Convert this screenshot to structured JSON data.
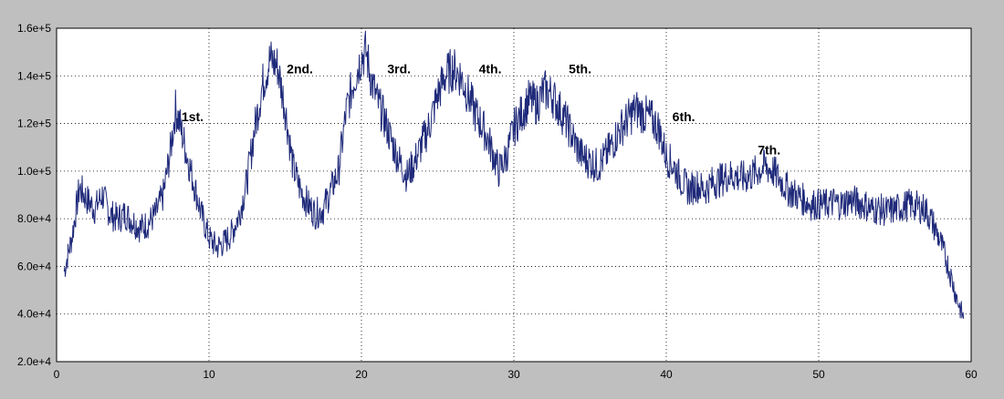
{
  "colors": {
    "background": "#bfbfbf",
    "plot_area": "#ffffff",
    "line": "#1f2a7a",
    "grid": "#000000"
  },
  "chart_data": {
    "type": "line",
    "title": "",
    "xlabel": "",
    "ylabel": "",
    "xlim": [
      0,
      60
    ],
    "ylim": [
      20000,
      160000
    ],
    "xticks": [
      0,
      10,
      20,
      30,
      40,
      50,
      60
    ],
    "yticks": [
      20000,
      40000,
      60000,
      80000,
      100000,
      120000,
      140000,
      160000
    ],
    "xtick_labels": [
      "0",
      "10",
      "20",
      "30",
      "40",
      "50",
      "60"
    ],
    "ytick_labels": [
      "2.0e+4",
      "4.0e+4",
      "6.0e+4",
      "8.0e+4",
      "1.0e+5",
      "1.2e+5",
      "1.4e+5",
      "1.6e+5"
    ],
    "grid": true,
    "series": [
      {
        "x": [
          0.5,
          1,
          1.5,
          2,
          2.5,
          3,
          3.5,
          4,
          4.5,
          5,
          5.5,
          6,
          6.5,
          7,
          7.5,
          7.8,
          8,
          8.5,
          9,
          9.5,
          10,
          10.5,
          11,
          11.5,
          12,
          12.5,
          13,
          13.5,
          14,
          14.5,
          15,
          15.5,
          16,
          16.5,
          17,
          17.5,
          18,
          18.5,
          19,
          19.5,
          20,
          20.3,
          20.6,
          21,
          21.5,
          22,
          22.5,
          23,
          23.5,
          24,
          24.5,
          25,
          25.5,
          26,
          26.5,
          27,
          27.5,
          28,
          28.5,
          29,
          29.5,
          30,
          30.5,
          31,
          31.5,
          32,
          32.5,
          33,
          33.5,
          34,
          34.5,
          35,
          35.5,
          36,
          36.5,
          37,
          37.5,
          38,
          38.5,
          39,
          39.5,
          40,
          40.5,
          41,
          41.5,
          42,
          42.5,
          43,
          43.5,
          44,
          44.5,
          45,
          45.5,
          46,
          46.5,
          47,
          47.5,
          48,
          48.5,
          49,
          49.5,
          50,
          50.5,
          51,
          51.5,
          52,
          52.5,
          53,
          53.5,
          54,
          54.5,
          55,
          55.5,
          56,
          56.5,
          57,
          57.5,
          58,
          58.5,
          59,
          59.5
        ],
        "y": [
          58000,
          72000,
          93000,
          88000,
          84000,
          90000,
          82000,
          80000,
          82000,
          79000,
          76000,
          78000,
          82000,
          90000,
          110000,
          126000,
          122000,
          108000,
          95000,
          82000,
          72000,
          68000,
          70000,
          74000,
          82000,
          96000,
          118000,
          136000,
          147000,
          144000,
          126000,
          102000,
          92000,
          86000,
          82000,
          84000,
          92000,
          100000,
          125000,
          138000,
          148000,
          150000,
          140000,
          130000,
          122000,
          112000,
          104000,
          98000,
          104000,
          112000,
          120000,
          132000,
          140000,
          143000,
          140000,
          132000,
          124000,
          118000,
          110000,
          100000,
          106000,
          118000,
          124000,
          130000,
          128000,
          134000,
          132000,
          126000,
          120000,
          112000,
          106000,
          104000,
          102000,
          106000,
          112000,
          118000,
          122000,
          126000,
          124000,
          122000,
          118000,
          106000,
          102000,
          96000,
          92000,
          94000,
          92000,
          95000,
          96000,
          98000,
          98000,
          97000,
          98000,
          100000,
          102000,
          100000,
          96000,
          92000,
          90000,
          88000,
          86000,
          86000,
          86000,
          87000,
          86000,
          88000,
          87000,
          86000,
          84000,
          84000,
          83000,
          84000,
          85000,
          86000,
          85000,
          84000,
          78000,
          70000,
          60000,
          48000,
          38000
        ]
      }
    ],
    "annotations": [
      {
        "text": "1st.",
        "x": 8.2,
        "y": 121000
      },
      {
        "text": "2nd.",
        "x": 15.1,
        "y": 141000
      },
      {
        "text": "3rd.",
        "x": 21.7,
        "y": 141000
      },
      {
        "text": "4th.",
        "x": 27.7,
        "y": 141000
      },
      {
        "text": "5th.",
        "x": 33.6,
        "y": 141000
      },
      {
        "text": "6th.",
        "x": 40.4,
        "y": 121000
      },
      {
        "text": "7th.",
        "x": 46.0,
        "y": 107000
      }
    ]
  }
}
